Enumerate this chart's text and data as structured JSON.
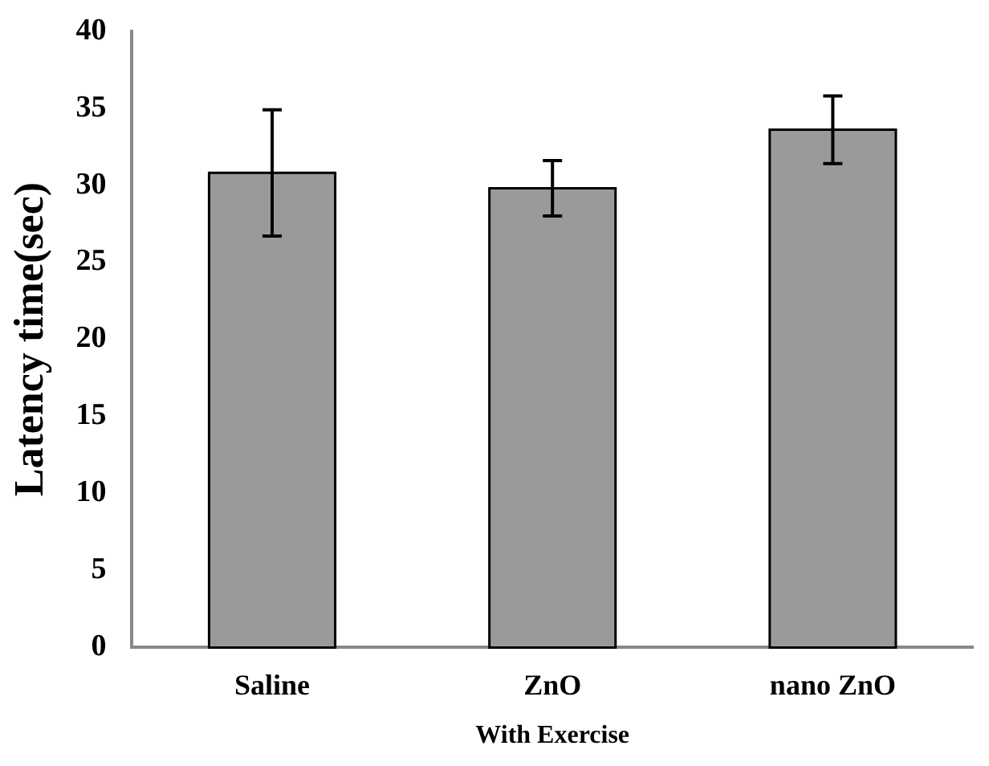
{
  "chart_data": {
    "type": "bar",
    "xlabel": "With Exercise",
    "ylabel": "Latency time(sec)",
    "categories": [
      "Saline",
      "ZnO",
      "nano ZnO"
    ],
    "values": [
      30.8,
      29.8,
      33.6
    ],
    "errors": [
      4.1,
      1.8,
      2.2
    ],
    "color": "#9a9a9a",
    "ylim": [
      0,
      40
    ],
    "yticks": [
      0,
      5,
      10,
      15,
      20,
      25,
      30,
      35,
      40
    ],
    "grid": false,
    "legend": false
  }
}
